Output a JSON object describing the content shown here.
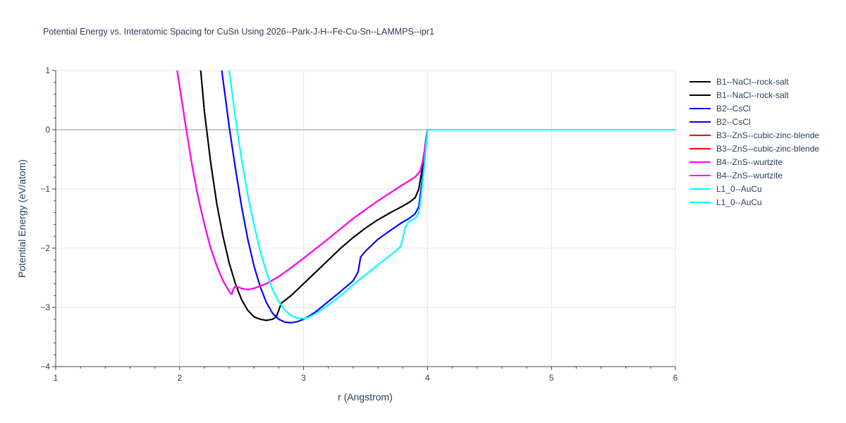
{
  "chart_data": {
    "type": "line",
    "title": "Potential Energy vs. Interatomic Spacing for CuSn Using 2026--Park-J-H--Fe-Cu-Sn--LAMMPS--ipr1",
    "xlabel": "r (Angstrom)",
    "ylabel": "Potential Energy (eV/atom)",
    "xlim": [
      1,
      6
    ],
    "ylim": [
      -4,
      1
    ],
    "xticks": [
      1,
      2,
      3,
      4,
      5,
      6
    ],
    "yticks": [
      -4,
      -3,
      -2,
      -1,
      0,
      1
    ],
    "xtick_labels": [
      "1",
      "2",
      "3",
      "4",
      "5",
      "6"
    ],
    "ytick_labels": [
      "−4",
      "−3",
      "−2",
      "−1",
      "0",
      "1"
    ],
    "grid": true,
    "legend_position": "right",
    "series": [
      {
        "name": "B1--NaCl--rock-salt",
        "color": "#000000",
        "x": [
          2.17,
          2.2,
          2.25,
          2.3,
          2.35,
          2.4,
          2.45,
          2.5,
          2.55,
          2.6,
          2.65,
          2.7,
          2.75,
          2.78,
          2.8,
          2.82,
          2.85,
          2.9,
          3.0,
          3.1,
          3.2,
          3.3,
          3.4,
          3.5,
          3.6,
          3.7,
          3.8,
          3.85,
          3.9,
          3.93,
          3.95,
          3.97,
          3.99,
          4.0,
          4.5,
          5.0,
          5.5,
          6.0
        ],
        "y": [
          1.0,
          0.3,
          -0.55,
          -1.25,
          -1.8,
          -2.25,
          -2.6,
          -2.87,
          -3.05,
          -3.16,
          -3.2,
          -3.22,
          -3.2,
          -3.16,
          -3.05,
          -2.93,
          -2.88,
          -2.8,
          -2.6,
          -2.4,
          -2.2,
          -2.0,
          -1.82,
          -1.66,
          -1.52,
          -1.4,
          -1.29,
          -1.23,
          -1.15,
          -1.0,
          -0.75,
          -0.45,
          -0.12,
          0.0,
          0.0,
          0.0,
          0.0,
          0.0
        ]
      },
      {
        "name": "B1--NaCl--rock-salt",
        "color": "#000000",
        "x": [
          2.17,
          2.2,
          2.25,
          2.3,
          2.35,
          2.4,
          2.45,
          2.5,
          2.55,
          2.6,
          2.65,
          2.7,
          2.75,
          2.78,
          2.8,
          2.82,
          2.85,
          2.9,
          3.0,
          3.1,
          3.2,
          3.3,
          3.4,
          3.5,
          3.6,
          3.7,
          3.8,
          3.85,
          3.9,
          3.93,
          3.95,
          3.97,
          3.99,
          4.0,
          4.5,
          5.0,
          5.5,
          6.0
        ],
        "y": [
          1.0,
          0.3,
          -0.55,
          -1.25,
          -1.8,
          -2.25,
          -2.6,
          -2.87,
          -3.05,
          -3.16,
          -3.2,
          -3.22,
          -3.2,
          -3.16,
          -3.05,
          -2.93,
          -2.88,
          -2.8,
          -2.6,
          -2.4,
          -2.2,
          -2.0,
          -1.82,
          -1.66,
          -1.52,
          -1.4,
          -1.29,
          -1.23,
          -1.15,
          -1.0,
          -0.75,
          -0.45,
          -0.12,
          0.0,
          0.0,
          0.0,
          0.0,
          0.0
        ]
      },
      {
        "name": "B2--CsCl",
        "color": "#0000ff",
        "x": [
          2.34,
          2.4,
          2.45,
          2.5,
          2.55,
          2.6,
          2.65,
          2.7,
          2.75,
          2.8,
          2.85,
          2.9,
          2.95,
          3.0,
          3.05,
          3.1,
          3.2,
          3.3,
          3.4,
          3.44,
          3.46,
          3.48,
          3.5,
          3.6,
          3.7,
          3.8,
          3.85,
          3.9,
          3.93,
          3.96,
          3.98,
          4.0,
          4.5,
          5.0,
          5.5,
          6.0
        ],
        "y": [
          1.0,
          0.05,
          -0.65,
          -1.3,
          -1.85,
          -2.3,
          -2.65,
          -2.92,
          -3.1,
          -3.2,
          -3.25,
          -3.26,
          -3.24,
          -3.2,
          -3.14,
          -3.07,
          -2.9,
          -2.73,
          -2.55,
          -2.4,
          -2.15,
          -2.1,
          -2.05,
          -1.85,
          -1.7,
          -1.56,
          -1.5,
          -1.42,
          -1.3,
          -0.8,
          -0.4,
          0.0,
          0.0,
          0.0,
          0.0,
          0.0
        ]
      },
      {
        "name": "B2--CsCl",
        "color": "#0000ff",
        "x": [
          2.34,
          2.4,
          2.45,
          2.5,
          2.55,
          2.6,
          2.65,
          2.7,
          2.75,
          2.8,
          2.85,
          2.9,
          2.95,
          3.0,
          3.05,
          3.1,
          3.2,
          3.3,
          3.4,
          3.44,
          3.46,
          3.48,
          3.5,
          3.6,
          3.7,
          3.8,
          3.85,
          3.9,
          3.93,
          3.96,
          3.98,
          4.0,
          4.5,
          5.0,
          5.5,
          6.0
        ],
        "y": [
          1.0,
          0.05,
          -0.65,
          -1.3,
          -1.85,
          -2.3,
          -2.65,
          -2.92,
          -3.1,
          -3.2,
          -3.25,
          -3.26,
          -3.24,
          -3.2,
          -3.14,
          -3.07,
          -2.9,
          -2.73,
          -2.55,
          -2.4,
          -2.15,
          -2.1,
          -2.05,
          -1.85,
          -1.7,
          -1.56,
          -1.5,
          -1.42,
          -1.3,
          -0.8,
          -0.4,
          0.0,
          0.0,
          0.0,
          0.0,
          0.0
        ]
      },
      {
        "name": "B3--ZnS--cubic-zinc-blende",
        "color": "#ff0000",
        "x": [
          1.98,
          2.05,
          2.1,
          2.15,
          2.2,
          2.25,
          2.3,
          2.35,
          2.4,
          2.42,
          2.44,
          2.46,
          2.5,
          2.55,
          2.6,
          2.7,
          2.8,
          2.9,
          3.0,
          3.2,
          3.4,
          3.6,
          3.8,
          3.9,
          3.94,
          3.96,
          3.98,
          4.0,
          4.5,
          5.0,
          5.5,
          6.0
        ],
        "y": [
          1.0,
          0.05,
          -0.6,
          -1.15,
          -1.6,
          -2.0,
          -2.3,
          -2.55,
          -2.73,
          -2.78,
          -2.66,
          -2.65,
          -2.68,
          -2.7,
          -2.68,
          -2.6,
          -2.48,
          -2.33,
          -2.17,
          -1.84,
          -1.5,
          -1.2,
          -0.93,
          -0.8,
          -0.7,
          -0.55,
          -0.3,
          0.0,
          0.0,
          0.0,
          0.0,
          0.0
        ]
      },
      {
        "name": "B3--ZnS--cubic-zinc-blende",
        "color": "#ff0000",
        "x": [
          1.98,
          2.05,
          2.1,
          2.15,
          2.2,
          2.25,
          2.3,
          2.35,
          2.4,
          2.42,
          2.44,
          2.46,
          2.5,
          2.55,
          2.6,
          2.7,
          2.8,
          2.9,
          3.0,
          3.2,
          3.4,
          3.6,
          3.8,
          3.9,
          3.94,
          3.96,
          3.98,
          4.0,
          4.5,
          5.0,
          5.5,
          6.0
        ],
        "y": [
          1.0,
          0.05,
          -0.6,
          -1.15,
          -1.6,
          -2.0,
          -2.3,
          -2.55,
          -2.73,
          -2.78,
          -2.66,
          -2.65,
          -2.68,
          -2.7,
          -2.68,
          -2.6,
          -2.48,
          -2.33,
          -2.17,
          -1.84,
          -1.5,
          -1.2,
          -0.93,
          -0.8,
          -0.7,
          -0.55,
          -0.3,
          0.0,
          0.0,
          0.0,
          0.0,
          0.0
        ]
      },
      {
        "name": "B4--ZnS--wurtzite",
        "color": "#ff00ff",
        "x": [
          1.98,
          2.05,
          2.1,
          2.15,
          2.2,
          2.25,
          2.3,
          2.35,
          2.4,
          2.42,
          2.44,
          2.46,
          2.5,
          2.55,
          2.6,
          2.7,
          2.8,
          2.9,
          3.0,
          3.2,
          3.4,
          3.6,
          3.8,
          3.9,
          3.94,
          3.96,
          3.98,
          4.0,
          4.5,
          5.0,
          5.5,
          6.0
        ],
        "y": [
          1.0,
          0.05,
          -0.6,
          -1.15,
          -1.6,
          -2.0,
          -2.3,
          -2.55,
          -2.73,
          -2.78,
          -2.66,
          -2.65,
          -2.68,
          -2.7,
          -2.68,
          -2.6,
          -2.48,
          -2.33,
          -2.17,
          -1.84,
          -1.5,
          -1.2,
          -0.93,
          -0.8,
          -0.7,
          -0.55,
          -0.3,
          0.0,
          0.0,
          0.0,
          0.0,
          0.0
        ]
      },
      {
        "name": "B4--ZnS--wurtzite",
        "color": "#ff00ff",
        "x": [
          1.98,
          2.05,
          2.1,
          2.15,
          2.2,
          2.25,
          2.3,
          2.35,
          2.4,
          2.42,
          2.44,
          2.46,
          2.5,
          2.55,
          2.6,
          2.7,
          2.8,
          2.9,
          3.0,
          3.2,
          3.4,
          3.6,
          3.8,
          3.9,
          3.94,
          3.96,
          3.98,
          4.0,
          4.5,
          5.0,
          5.5,
          6.0
        ],
        "y": [
          1.0,
          0.05,
          -0.6,
          -1.15,
          -1.6,
          -2.0,
          -2.3,
          -2.55,
          -2.73,
          -2.78,
          -2.66,
          -2.65,
          -2.68,
          -2.7,
          -2.68,
          -2.6,
          -2.48,
          -2.33,
          -2.17,
          -1.84,
          -1.5,
          -1.2,
          -0.93,
          -0.8,
          -0.7,
          -0.55,
          -0.3,
          0.0,
          0.0,
          0.0,
          0.0,
          0.0
        ]
      },
      {
        "name": "L1_0--AuCu",
        "color": "#00ffff",
        "x": [
          2.4,
          2.45,
          2.5,
          2.55,
          2.6,
          2.65,
          2.7,
          2.75,
          2.8,
          2.85,
          2.9,
          2.95,
          3.0,
          3.05,
          3.1,
          3.2,
          3.3,
          3.4,
          3.5,
          3.6,
          3.7,
          3.78,
          3.8,
          3.82,
          3.85,
          3.9,
          3.93,
          3.95,
          3.97,
          3.99,
          4.0,
          4.5,
          5.0,
          5.5,
          6.0
        ],
        "y": [
          1.0,
          0.2,
          -0.5,
          -1.1,
          -1.6,
          -2.05,
          -2.4,
          -2.7,
          -2.9,
          -3.05,
          -3.14,
          -3.18,
          -3.19,
          -3.16,
          -3.1,
          -2.96,
          -2.8,
          -2.62,
          -2.45,
          -2.28,
          -2.12,
          -1.98,
          -1.85,
          -1.65,
          -1.55,
          -1.5,
          -1.4,
          -1.1,
          -0.7,
          -0.25,
          0.0,
          0.0,
          0.0,
          0.0,
          0.0
        ]
      },
      {
        "name": "L1_0--AuCu",
        "color": "#00ffff",
        "x": [
          2.4,
          2.45,
          2.5,
          2.55,
          2.6,
          2.65,
          2.7,
          2.75,
          2.8,
          2.85,
          2.9,
          2.95,
          3.0,
          3.05,
          3.1,
          3.2,
          3.3,
          3.4,
          3.5,
          3.6,
          3.7,
          3.78,
          3.8,
          3.82,
          3.85,
          3.9,
          3.93,
          3.95,
          3.97,
          3.99,
          4.0,
          4.5,
          5.0,
          5.5,
          6.0
        ],
        "y": [
          1.0,
          0.2,
          -0.5,
          -1.1,
          -1.6,
          -2.05,
          -2.4,
          -2.7,
          -2.9,
          -3.05,
          -3.14,
          -3.18,
          -3.19,
          -3.16,
          -3.1,
          -2.96,
          -2.8,
          -2.62,
          -2.45,
          -2.28,
          -2.12,
          -1.98,
          -1.85,
          -1.65,
          -1.55,
          -1.5,
          -1.4,
          -1.1,
          -0.7,
          -0.25,
          0.0,
          0.0,
          0.0,
          0.0,
          0.0
        ]
      }
    ]
  }
}
